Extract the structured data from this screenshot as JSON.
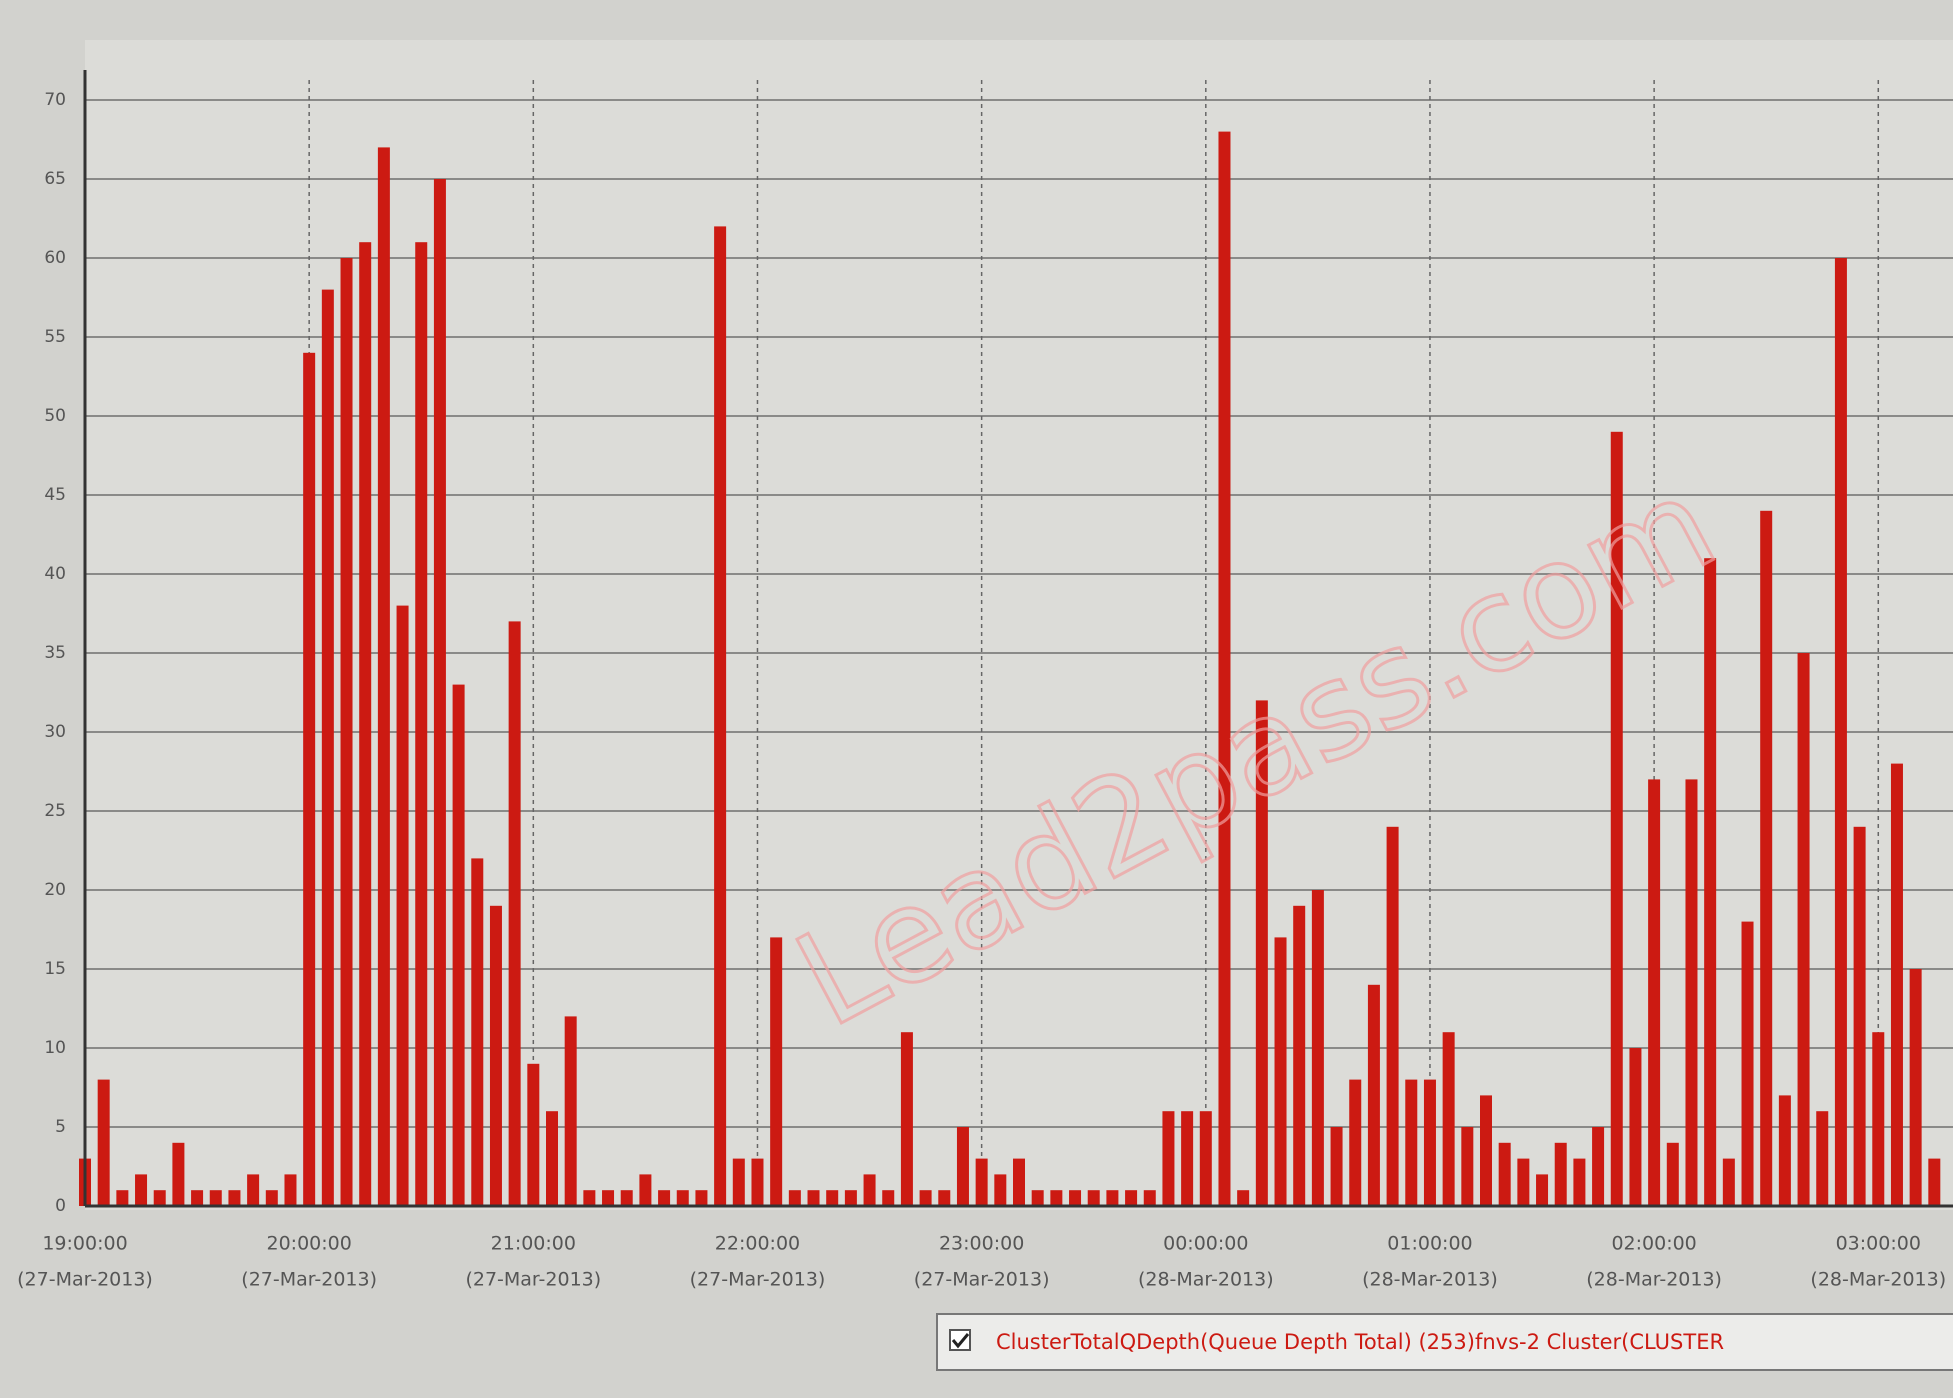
{
  "chart_data": {
    "type": "bar",
    "x": [
      "2013-03-27T19:00",
      "2013-03-27T19:05",
      "2013-03-27T19:10",
      "2013-03-27T19:15",
      "2013-03-27T19:20",
      "2013-03-27T19:25",
      "2013-03-27T19:30",
      "2013-03-27T19:35",
      "2013-03-27T19:40",
      "2013-03-27T19:45",
      "2013-03-27T19:50",
      "2013-03-27T19:55",
      "2013-03-27T20:00",
      "2013-03-27T20:05",
      "2013-03-27T20:10",
      "2013-03-27T20:15",
      "2013-03-27T20:20",
      "2013-03-27T20:25",
      "2013-03-27T20:30",
      "2013-03-27T20:35",
      "2013-03-27T20:40",
      "2013-03-27T20:45",
      "2013-03-27T20:50",
      "2013-03-27T20:55",
      "2013-03-27T21:00",
      "2013-03-27T21:05",
      "2013-03-27T21:10",
      "2013-03-27T21:15",
      "2013-03-27T21:20",
      "2013-03-27T21:25",
      "2013-03-27T21:30",
      "2013-03-27T21:35",
      "2013-03-27T21:40",
      "2013-03-27T21:45",
      "2013-03-27T21:50",
      "2013-03-27T21:55",
      "2013-03-27T22:00",
      "2013-03-27T22:05",
      "2013-03-27T22:10",
      "2013-03-27T22:15",
      "2013-03-27T22:20",
      "2013-03-27T22:25",
      "2013-03-27T22:30",
      "2013-03-27T22:35",
      "2013-03-27T22:40",
      "2013-03-27T22:45",
      "2013-03-27T22:50",
      "2013-03-27T22:55",
      "2013-03-27T23:00",
      "2013-03-27T23:05",
      "2013-03-27T23:10",
      "2013-03-27T23:15",
      "2013-03-27T23:20",
      "2013-03-27T23:25",
      "2013-03-27T23:30",
      "2013-03-27T23:35",
      "2013-03-27T23:40",
      "2013-03-27T23:45",
      "2013-03-27T23:50",
      "2013-03-27T23:55",
      "2013-03-28T00:00",
      "2013-03-28T00:05",
      "2013-03-28T00:10",
      "2013-03-28T00:15",
      "2013-03-28T00:20",
      "2013-03-28T00:25",
      "2013-03-28T00:30",
      "2013-03-28T00:35",
      "2013-03-28T00:40",
      "2013-03-28T00:45",
      "2013-03-28T00:50",
      "2013-03-28T00:55",
      "2013-03-28T01:00",
      "2013-03-28T01:05",
      "2013-03-28T01:10",
      "2013-03-28T01:15",
      "2013-03-28T01:20",
      "2013-03-28T01:25",
      "2013-03-28T01:30",
      "2013-03-28T01:35",
      "2013-03-28T01:40",
      "2013-03-28T01:45",
      "2013-03-28T01:50",
      "2013-03-28T01:55",
      "2013-03-28T02:00",
      "2013-03-28T02:05",
      "2013-03-28T02:10",
      "2013-03-28T02:15",
      "2013-03-28T02:20",
      "2013-03-28T02:25",
      "2013-03-28T02:30",
      "2013-03-28T02:35",
      "2013-03-28T02:40",
      "2013-03-28T02:45",
      "2013-03-28T02:50",
      "2013-03-28T02:55",
      "2013-03-28T03:00",
      "2013-03-28T03:05",
      "2013-03-28T03:10",
      "2013-03-28T03:15"
    ],
    "series": [
      {
        "name": "ClusterTotalQDepth(Queue Depth Total) (253)fnvs-2 Cluster(CLUSTER",
        "color": "#cc1a12",
        "values": [
          3,
          8,
          1,
          2,
          1,
          4,
          1,
          1,
          1,
          2,
          1,
          2,
          54,
          58,
          60,
          61,
          67,
          38,
          61,
          65,
          33,
          22,
          19,
          37,
          9,
          6,
          12,
          1,
          1,
          1,
          2,
          1,
          1,
          1,
          62,
          3,
          3,
          17,
          1,
          1,
          1,
          1,
          2,
          1,
          11,
          1,
          1,
          5,
          3,
          2,
          3,
          1,
          1,
          1,
          1,
          1,
          1,
          1,
          6,
          6,
          6,
          68,
          1,
          32,
          17,
          19,
          20,
          5,
          8,
          14,
          24,
          8,
          8,
          11,
          5,
          7,
          4,
          3,
          2,
          4,
          3,
          5,
          49,
          10,
          27,
          4,
          27,
          41,
          3,
          18,
          44,
          7,
          35,
          6,
          60,
          24,
          11,
          28,
          15,
          3
        ]
      }
    ],
    "xlim": [
      "2013-03-27T19:00",
      "2013-03-28T03:20"
    ],
    "xticks": [
      {
        "value": "2013-03-27T19:00",
        "label": "19:00:00",
        "date": "(27-Mar-2013)"
      },
      {
        "value": "2013-03-27T20:00",
        "label": "20:00:00",
        "date": "(27-Mar-2013)"
      },
      {
        "value": "2013-03-27T21:00",
        "label": "21:00:00",
        "date": "(27-Mar-2013)"
      },
      {
        "value": "2013-03-27T22:00",
        "label": "22:00:00",
        "date": "(27-Mar-2013)"
      },
      {
        "value": "2013-03-27T23:00",
        "label": "23:00:00",
        "date": "(27-Mar-2013)"
      },
      {
        "value": "2013-03-28T00:00",
        "label": "00:00:00",
        "date": "(28-Mar-2013)"
      },
      {
        "value": "2013-03-28T01:00",
        "label": "01:00:00",
        "date": "(28-Mar-2013)"
      },
      {
        "value": "2013-03-28T02:00",
        "label": "02:00:00",
        "date": "(28-Mar-2013)"
      },
      {
        "value": "2013-03-28T03:00",
        "label": "03:00:00",
        "date": "(28-Mar-2013)"
      }
    ],
    "ylim": [
      0,
      70
    ],
    "yticks": [
      0,
      5,
      10,
      15,
      20,
      25,
      30,
      35,
      40,
      45,
      50,
      55,
      60,
      65,
      70
    ],
    "grid": true,
    "watermark": "Lead2pass.com"
  }
}
